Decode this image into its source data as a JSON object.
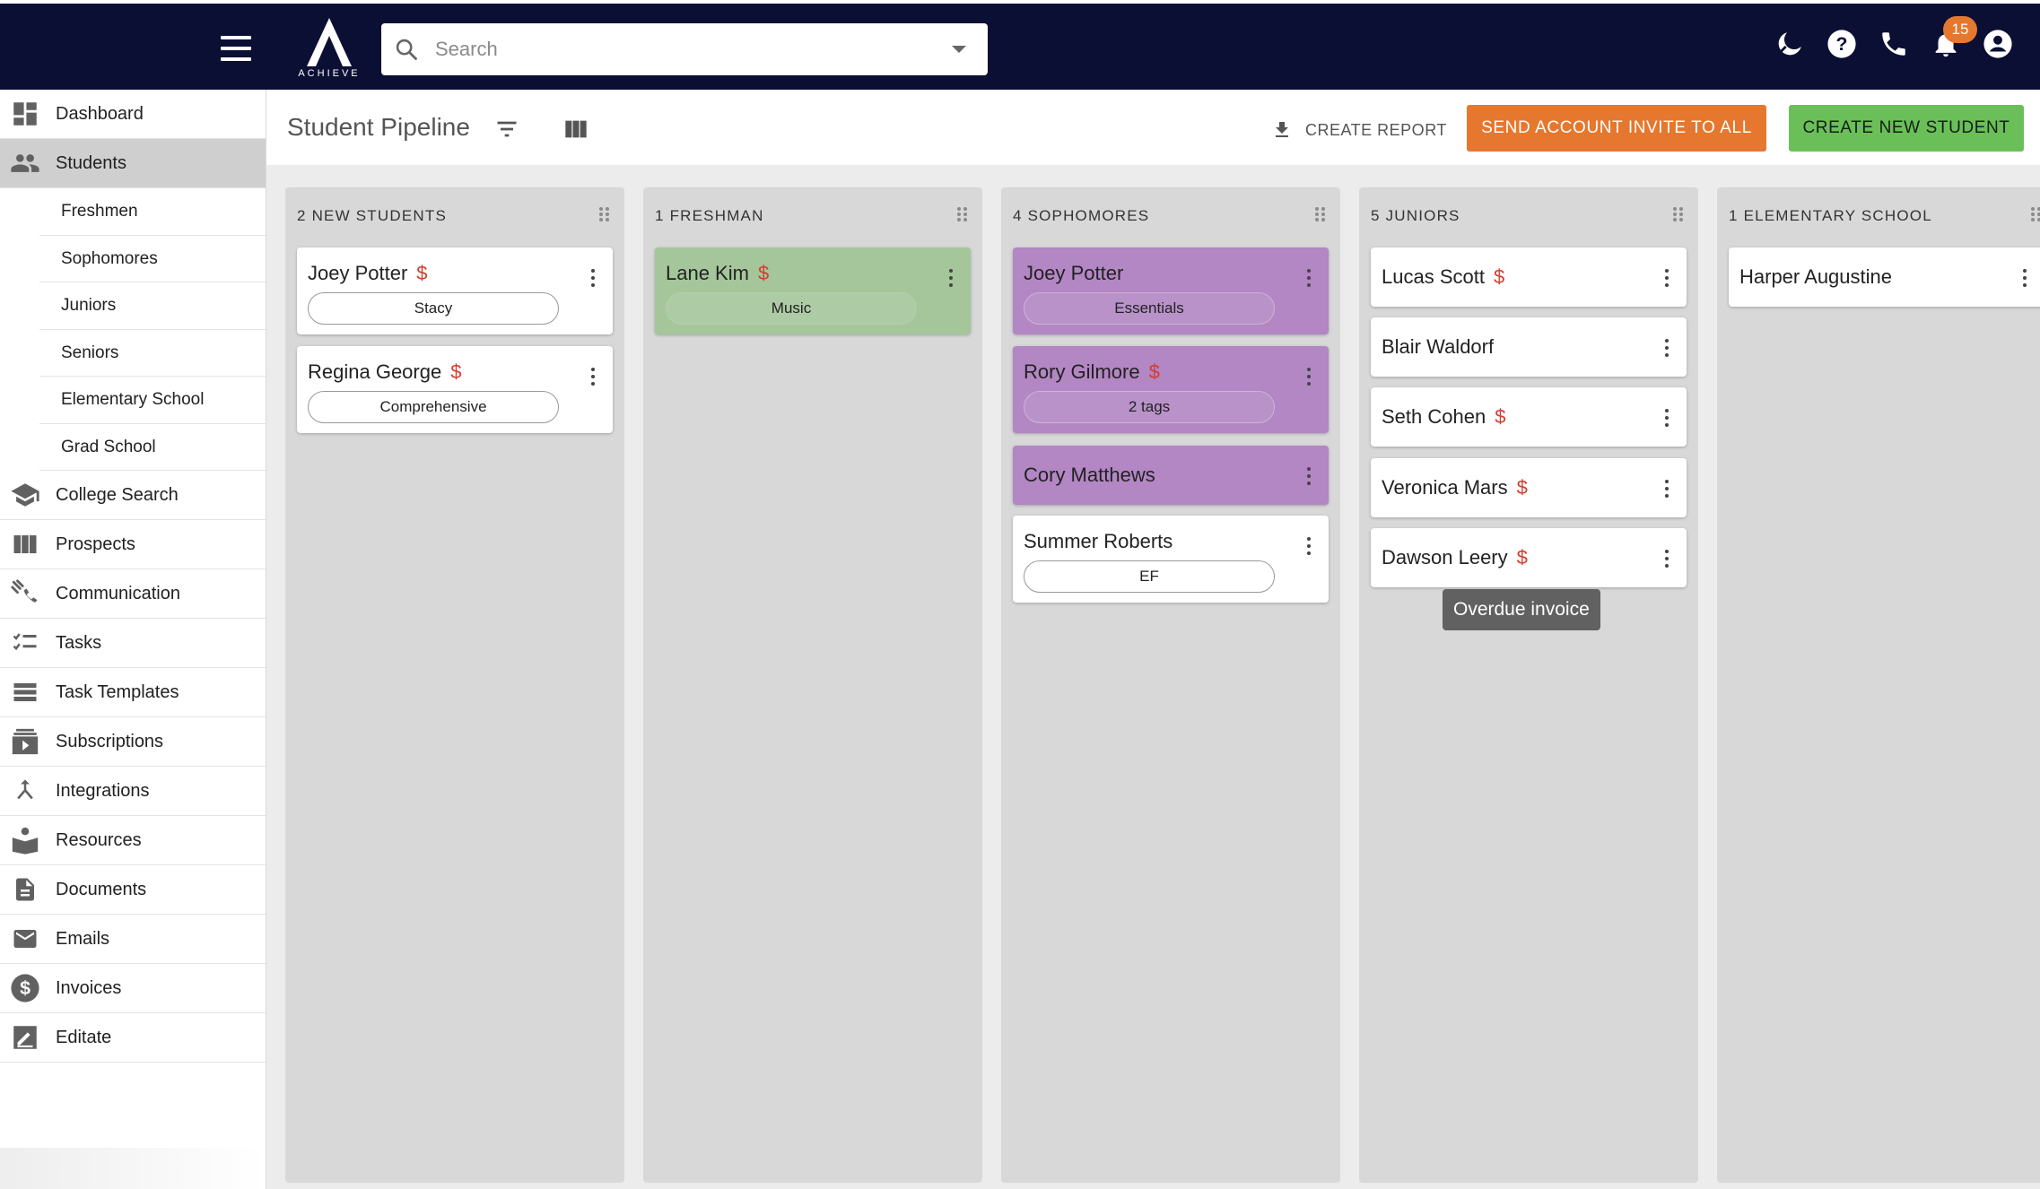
{
  "header": {
    "logo_text": "ACHIEVE",
    "search_placeholder": "Search",
    "notification_count": "15"
  },
  "sidebar": {
    "items": [
      {
        "label": "Dashboard",
        "icon": "dashboard-icon"
      },
      {
        "label": "Students",
        "icon": "people-icon"
      },
      {
        "label": "College Search",
        "icon": "school-icon"
      },
      {
        "label": "Prospects",
        "icon": "columns-icon"
      },
      {
        "label": "Communication",
        "icon": "communication-icon"
      },
      {
        "label": "Tasks",
        "icon": "checklist-icon"
      },
      {
        "label": "Task Templates",
        "icon": "list-icon"
      },
      {
        "label": "Subscriptions",
        "icon": "subscriptions-icon"
      },
      {
        "label": "Integrations",
        "icon": "merge-icon"
      },
      {
        "label": "Resources",
        "icon": "book-icon"
      },
      {
        "label": "Documents",
        "icon": "document-icon"
      },
      {
        "label": "Emails",
        "icon": "mail-icon"
      },
      {
        "label": "Invoices",
        "icon": "dollar-icon"
      },
      {
        "label": "Editate",
        "icon": "edit-icon"
      }
    ],
    "student_sub_items": [
      "Freshmen",
      "Sophomores",
      "Juniors",
      "Seniors",
      "Elementary School",
      "Grad School"
    ]
  },
  "main": {
    "title": "Student Pipeline",
    "create_report": "CREATE REPORT",
    "send_invite": "SEND ACCOUNT INVITE TO ALL",
    "create_student": "CREATE NEW STUDENT"
  },
  "columns": [
    {
      "title": "2 NEW STUDENTS",
      "cards": [
        {
          "name": "Joey Potter",
          "dollar": "$",
          "tag": "Stacy",
          "color": "white"
        },
        {
          "name": "Regina George",
          "dollar": "$",
          "tag": "Comprehensive",
          "color": "white"
        }
      ]
    },
    {
      "title": "1 FRESHMAN",
      "cards": [
        {
          "name": "Lane Kim",
          "dollar": "$",
          "tag": "Music",
          "color": "green"
        }
      ]
    },
    {
      "title": "4 SOPHOMORES",
      "cards": [
        {
          "name": "Joey Potter",
          "dollar": "",
          "tag": "Essentials",
          "color": "purple"
        },
        {
          "name": "Rory Gilmore",
          "dollar": "$",
          "tag": "2 tags",
          "color": "purple"
        },
        {
          "name": "Cory Matthews",
          "dollar": "",
          "tag": "",
          "color": "purple"
        },
        {
          "name": "Summer Roberts",
          "dollar": "",
          "tag": "EF",
          "color": "white"
        }
      ]
    },
    {
      "title": "5 JUNIORS",
      "cards": [
        {
          "name": "Lucas Scott",
          "dollar": "$",
          "tag": "",
          "color": "white"
        },
        {
          "name": "Blair Waldorf",
          "dollar": "",
          "tag": "",
          "color": "white"
        },
        {
          "name": "Seth Cohen",
          "dollar": "$",
          "tag": "",
          "color": "white"
        },
        {
          "name": "Veronica Mars",
          "dollar": "$",
          "tag": "",
          "color": "white"
        },
        {
          "name": "Dawson Leery",
          "dollar": "$",
          "tag": "",
          "color": "white"
        }
      ]
    },
    {
      "title": "1 ELEMENTARY SCHOOL",
      "cards": [
        {
          "name": "Harper Augustine",
          "dollar": "",
          "tag": "",
          "color": "white"
        }
      ]
    }
  ],
  "tooltip": "Overdue invoice",
  "colors": {
    "topbar": "#0b0f33",
    "orange": "#e6772e",
    "green": "#6bbf59",
    "purple_card": "#b386c4",
    "green_card": "#a4c69a",
    "dollar_red": "#d43c2f"
  }
}
